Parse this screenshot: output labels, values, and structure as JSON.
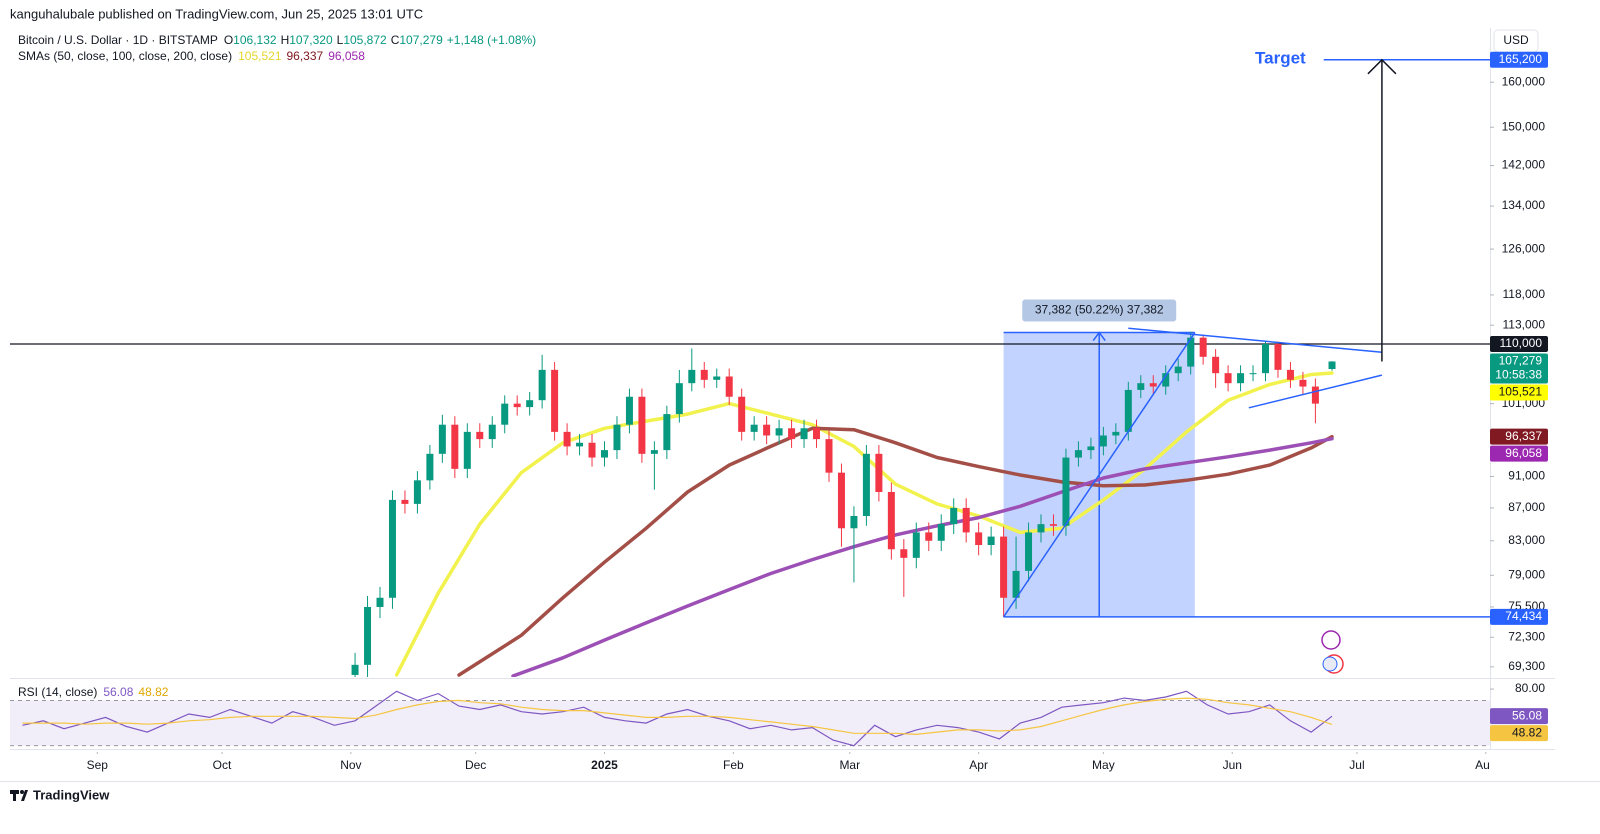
{
  "header": {
    "byline": "kanguhalubale published on TradingView.com, Jun 25, 2025 13:01 UTC"
  },
  "footer": {
    "brand": "TradingView"
  },
  "chart_data": [
    {
      "type": "candlestick",
      "title": "Bitcoin / U.S. Dollar · 1D · BITSTAMP",
      "ohlc": [
        {
          "key": "O",
          "value": "106,132"
        },
        {
          "key": "H",
          "value": "107,320"
        },
        {
          "key": "L",
          "value": "105,872"
        },
        {
          "key": "C",
          "value": "107,279"
        }
      ],
      "change": "+1,148 (+1.08%)",
      "indicator": "SMAs (50, close, 100, close, 200, close)",
      "currency": "USD",
      "log_scale": true,
      "xlim": [
        -143,
        213
      ],
      "xticks": [
        {
          "value": -122,
          "label": "Sep"
        },
        {
          "value": -92,
          "label": "Oct"
        },
        {
          "value": -61,
          "label": "Nov"
        },
        {
          "value": -31,
          "label": "Dec"
        },
        {
          "value": 0,
          "label": "2025"
        },
        {
          "value": 31,
          "label": "Feb"
        },
        {
          "value": 59,
          "label": "Mar"
        },
        {
          "value": 90,
          "label": "Apr"
        },
        {
          "value": 120,
          "label": "May"
        },
        {
          "value": 151,
          "label": "Jun"
        },
        {
          "value": 181,
          "label": "Jul"
        },
        {
          "value": 212,
          "label": "Aug"
        }
      ],
      "ylim": [
        68300,
        172400
      ],
      "yticks": [
        {
          "value": 69300,
          "label": "69,300"
        },
        {
          "value": 72300,
          "label": "72,300"
        },
        {
          "value": 75500,
          "label": "75,500"
        },
        {
          "value": 79000,
          "label": "79,000"
        },
        {
          "value": 83000,
          "label": "83,000"
        },
        {
          "value": 87000,
          "label": "87,000"
        },
        {
          "value": 91000,
          "label": "91,000"
        },
        {
          "value": 101000,
          "label": "101,000"
        },
        {
          "value": 113000,
          "label": "113,000"
        },
        {
          "value": 118000,
          "label": "118,000"
        },
        {
          "value": 126000,
          "label": "126,000"
        },
        {
          "value": 134000,
          "label": "134,000"
        },
        {
          "value": 142000,
          "label": "142,000"
        },
        {
          "value": 150000,
          "label": "150,000"
        },
        {
          "value": 160000,
          "label": "160,000"
        }
      ],
      "up_color": "#089981",
      "down_color": "#f23645",
      "candles": {
        "x": [
          -60,
          -57,
          -54,
          -51,
          -48,
          -45,
          -42,
          -39,
          -36,
          -33,
          -30,
          -27,
          -24,
          -21,
          -18,
          -15,
          -12,
          -9,
          -6,
          -3,
          0,
          3,
          6,
          9,
          12,
          15,
          18,
          21,
          24,
          27,
          30,
          33,
          36,
          39,
          42,
          45,
          48,
          51,
          54,
          57,
          60,
          63,
          66,
          69,
          72,
          75,
          78,
          81,
          84,
          87,
          90,
          93,
          96,
          99,
          102,
          105,
          108,
          111,
          114,
          117,
          120,
          123,
          126,
          129,
          132,
          135,
          138,
          141,
          144,
          147,
          150,
          153,
          156,
          159,
          162,
          165,
          168,
          171,
          175
        ],
        "open": [
          68500,
          69500,
          75500,
          76500,
          88000,
          87500,
          90500,
          94000,
          98000,
          92000,
          97000,
          96000,
          98000,
          101000,
          100500,
          101500,
          106000,
          97000,
          95000,
          95500,
          93500,
          94500,
          98000,
          102000,
          94000,
          94500,
          99500,
          104000,
          106000,
          104500,
          105000,
          102000,
          97000,
          98000,
          96500,
          97500,
          96000,
          97500,
          96000,
          91500,
          84500,
          86000,
          94000,
          89000,
          82000,
          81000,
          84000,
          83000,
          85000,
          87000,
          84000,
          82500,
          83500,
          76500,
          79500,
          84000,
          85000,
          84800,
          93500,
          94500,
          95000,
          96500,
          97000,
          103000,
          104000,
          103500,
          105500,
          106500,
          111000,
          108000,
          105500,
          104000,
          105500,
          105500,
          110000,
          106000,
          104500,
          103500,
          106132
        ],
        "high": [
          70700,
          76700,
          77700,
          89200,
          89200,
          91700,
          95200,
          99400,
          99200,
          98200,
          98200,
          99200,
          102200,
          102200,
          102700,
          108300,
          107200,
          98200,
          96700,
          96700,
          95700,
          99200,
          103200,
          103200,
          95700,
          100700,
          106000,
          109300,
          107200,
          106200,
          106200,
          103200,
          99200,
          99200,
          98700,
          98700,
          98700,
          98700,
          97200,
          92700,
          87200,
          95200,
          95200,
          90200,
          83200,
          85200,
          85200,
          86200,
          88200,
          88200,
          85200,
          84700,
          84700,
          83500,
          85200,
          86200,
          86200,
          94700,
          95700,
          96200,
          97700,
          98200,
          104200,
          105200,
          105200,
          106700,
          107700,
          111970,
          111500,
          109200,
          106700,
          106700,
          106700,
          110500,
          110400,
          107200,
          105700,
          104700,
          107320
        ],
        "low": [
          67300,
          68300,
          74300,
          75300,
          86300,
          86300,
          89300,
          92800,
          90800,
          90800,
          94800,
          94800,
          96800,
          99300,
          99300,
          100300,
          95800,
          93800,
          93800,
          92300,
          92300,
          93300,
          96800,
          92800,
          89300,
          93300,
          98300,
          102800,
          103300,
          103300,
          100800,
          95800,
          95800,
          95300,
          95300,
          94800,
          94800,
          94800,
          90300,
          82300,
          78200,
          84800,
          87800,
          80800,
          76600,
          79800,
          81800,
          81800,
          83800,
          82800,
          81300,
          81300,
          74434,
          75300,
          78300,
          82800,
          83600,
          83600,
          92300,
          93300,
          93800,
          95300,
          95800,
          101800,
          102300,
          102300,
          104300,
          105300,
          106800,
          103300,
          102800,
          102800,
          104300,
          104300,
          104800,
          103300,
          102300,
          98200,
          105872
        ],
        "close": [
          69500,
          75500,
          76500,
          88000,
          87500,
          90500,
          94000,
          98000,
          92000,
          97000,
          96000,
          98000,
          101000,
          100500,
          101500,
          106000,
          97000,
          95000,
          95500,
          93500,
          94500,
          98000,
          102000,
          94000,
          94500,
          99500,
          104000,
          106000,
          104500,
          105000,
          102000,
          97000,
          98000,
          96500,
          97500,
          96000,
          97500,
          96000,
          91500,
          84500,
          86000,
          94000,
          89000,
          82000,
          81000,
          84000,
          83000,
          85000,
          87000,
          84000,
          82500,
          83500,
          76500,
          79500,
          84000,
          85000,
          84800,
          93500,
          94500,
          95000,
          96500,
          97000,
          103000,
          104000,
          103500,
          105500,
          106500,
          111000,
          108000,
          105500,
          104000,
          105500,
          105500,
          110000,
          106000,
          104500,
          103500,
          101000,
          107279
        ]
      },
      "series": [
        {
          "color": "#f2f24e",
          "value_label": "105,521",
          "x": [
            -50,
            -40,
            -30,
            -20,
            -10,
            0,
            10,
            20,
            30,
            40,
            50,
            60,
            70,
            80,
            90,
            100,
            110,
            120,
            130,
            140,
            150,
            160,
            170,
            175
          ],
          "values": [
            68500,
            77000,
            85000,
            91500,
            95500,
            97500,
            98500,
            99500,
            101000,
            99500,
            98000,
            95000,
            90000,
            87500,
            86000,
            84000,
            84500,
            88000,
            92000,
            97000,
            101500,
            103800,
            105300,
            105521
          ]
        },
        {
          "color": "#a34f47",
          "value_label": "96,337",
          "x": [
            -35,
            -20,
            -10,
            0,
            10,
            20,
            30,
            40,
            50,
            60,
            70,
            80,
            90,
            100,
            110,
            120,
            130,
            140,
            150,
            160,
            170,
            175
          ],
          "values": [
            68500,
            72500,
            76500,
            80500,
            84500,
            89000,
            92500,
            95000,
            97500,
            97300,
            95500,
            93500,
            92300,
            91200,
            90300,
            89800,
            89900,
            90500,
            91300,
            92500,
            94800,
            96337
          ]
        },
        {
          "color": "#9c4fb4",
          "value_label": "96,058",
          "x": [
            -22,
            -10,
            0,
            10,
            20,
            30,
            40,
            50,
            60,
            70,
            80,
            90,
            100,
            110,
            120,
            130,
            140,
            150,
            160,
            170,
            175
          ],
          "values": [
            68400,
            70200,
            72000,
            73800,
            75600,
            77400,
            79200,
            80800,
            82300,
            83700,
            84800,
            85800,
            87200,
            89000,
            90800,
            92000,
            92800,
            93600,
            94500,
            95500,
            96058
          ]
        }
      ],
      "price_labels": [
        {
          "value": 165200,
          "label": "165,200",
          "color": "#2962ff",
          "text_color": "#ffffff"
        },
        {
          "value": 110000,
          "label": "110,000",
          "color": "#131722",
          "text_color": "#ffffff"
        },
        {
          "value": 107279,
          "label": "107,279",
          "color": "#089981",
          "text_color": "#ffffff"
        },
        {
          "value": 105521,
          "label": "105,521",
          "color": "#ffff00",
          "text_color": "#131722"
        },
        {
          "value": 96337,
          "label": "96,337",
          "color": "#801922",
          "text_color": "#ffffff"
        },
        {
          "value": 96058,
          "label": "96,058",
          "color": "#9c27b0",
          "text_color": "#ffffff"
        },
        {
          "value": 74434,
          "label": "74,434",
          "color": "#2962ff",
          "text_color": "#ffffff"
        }
      ],
      "countdown": "10:58:38",
      "drawings": {
        "hline": 110000,
        "measure": {
          "x": [
            96,
            142
          ],
          "low": 74434,
          "change": 37382,
          "arrow_x": 119,
          "label": "37,382 (50.22%) 37,382"
        },
        "trend": {
          "x": [
            96,
            142
          ],
          "values": [
            74434,
            111816
          ]
        },
        "triangle_upper": {
          "x": [
            126,
            187
          ],
          "values": [
            112500,
            108700
          ]
        },
        "triangle_lower": {
          "x": [
            155,
            187
          ],
          "values": [
            100400,
            105200
          ]
        },
        "target": {
          "label": "Target",
          "value": 165200,
          "x": [
            173,
            213
          ],
          "arrow_x": 187,
          "arrow_from": 107279
        }
      }
    },
    {
      "type": "line",
      "title": "RSI (14, close)",
      "ylim": [
        28,
        88
      ],
      "yticks": [
        {
          "value": 80,
          "label": "80.00"
        }
      ],
      "bands": [
        30,
        70
      ],
      "band_color": "#7e57c2",
      "series": [
        {
          "color": "#7e57c2",
          "value_label": "56.08",
          "x": [
            -140,
            -135,
            -130,
            -125,
            -120,
            -115,
            -110,
            -105,
            -100,
            -95,
            -90,
            -85,
            -80,
            -75,
            -70,
            -65,
            -60,
            -55,
            -50,
            -45,
            -40,
            -35,
            -30,
            -25,
            -20,
            -15,
            -10,
            -5,
            0,
            5,
            10,
            15,
            20,
            25,
            30,
            35,
            40,
            45,
            50,
            55,
            60,
            65,
            70,
            75,
            80,
            85,
            90,
            95,
            100,
            105,
            110,
            115,
            120,
            125,
            130,
            135,
            140,
            145,
            150,
            155,
            160,
            165,
            170,
            175
          ],
          "values": [
            48,
            52,
            45,
            50,
            55,
            47,
            42,
            50,
            58,
            55,
            62,
            56,
            50,
            60,
            55,
            48,
            52,
            65,
            78,
            70,
            76,
            65,
            62,
            66,
            60,
            58,
            60,
            64,
            55,
            52,
            50,
            58,
            62,
            56,
            52,
            45,
            48,
            44,
            46,
            35,
            30,
            48,
            38,
            44,
            48,
            46,
            42,
            36,
            50,
            55,
            64,
            66,
            68,
            72,
            70,
            73,
            78,
            66,
            58,
            60,
            66,
            52,
            42,
            56.08
          ]
        },
        {
          "color": "#f5c542",
          "value_label": "48.82",
          "x": [
            -140,
            -135,
            -130,
            -125,
            -120,
            -115,
            -110,
            -105,
            -100,
            -95,
            -90,
            -85,
            -80,
            -75,
            -70,
            -65,
            -60,
            -55,
            -50,
            -45,
            -40,
            -35,
            -30,
            -25,
            -20,
            -15,
            -10,
            -5,
            0,
            5,
            10,
            15,
            20,
            25,
            30,
            35,
            40,
            45,
            50,
            55,
            60,
            65,
            70,
            75,
            80,
            85,
            90,
            95,
            100,
            105,
            110,
            115,
            120,
            125,
            130,
            135,
            140,
            145,
            150,
            155,
            160,
            165,
            170,
            175
          ],
          "values": [
            50,
            50,
            50,
            49,
            50,
            50,
            49,
            50,
            52,
            53,
            55,
            56,
            56,
            56,
            56,
            55,
            54,
            57,
            62,
            66,
            69,
            70,
            68,
            67,
            64,
            62,
            61,
            61,
            59,
            57,
            55,
            55,
            56,
            56,
            55,
            53,
            51,
            49,
            47,
            44,
            41,
            41,
            41,
            40,
            42,
            44,
            44,
            43,
            44,
            47,
            52,
            57,
            62,
            66,
            69,
            71,
            72,
            71,
            68,
            66,
            63,
            60,
            55,
            48.82
          ]
        }
      ]
    }
  ]
}
